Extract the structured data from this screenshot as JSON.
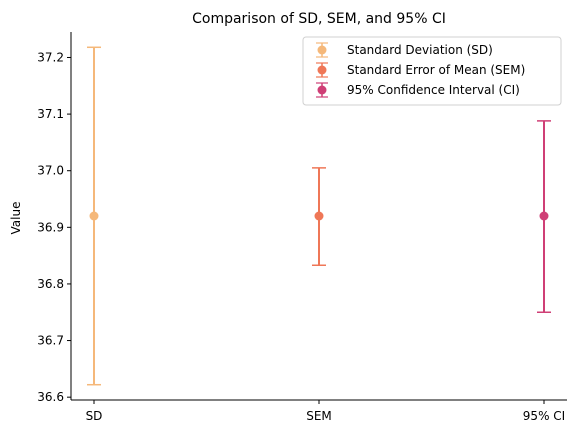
{
  "chart_data": {
    "type": "scatter",
    "title": "Comparison of SD, SEM, and 95% CI",
    "xlabel": "",
    "ylabel": "Value",
    "categories": [
      "SD",
      "SEM",
      "95% CI"
    ],
    "ylim": [
      36.595,
      37.245
    ],
    "y_ticks": [
      36.6,
      36.7,
      36.8,
      36.9,
      37.0,
      37.1,
      37.2
    ],
    "y_tick_labels": [
      "36.6",
      "36.7",
      "36.8",
      "36.9",
      "37.0",
      "37.1",
      "37.2"
    ],
    "legend_position": "top-right",
    "grid": false,
    "series": [
      {
        "name": "Standard Deviation (SD)",
        "category": "SD",
        "mean": 36.92,
        "lower": 36.622,
        "upper": 37.218,
        "color": "#f5b87a"
      },
      {
        "name": "Standard Error of Mean (SEM)",
        "category": "SEM",
        "mean": 36.92,
        "lower": 36.833,
        "upper": 37.005,
        "color": "#ef7757"
      },
      {
        "name": "95% Confidence Interval (CI)",
        "category": "95% CI",
        "mean": 36.92,
        "lower": 36.75,
        "upper": 37.088,
        "color": "#cf3f76"
      }
    ]
  }
}
